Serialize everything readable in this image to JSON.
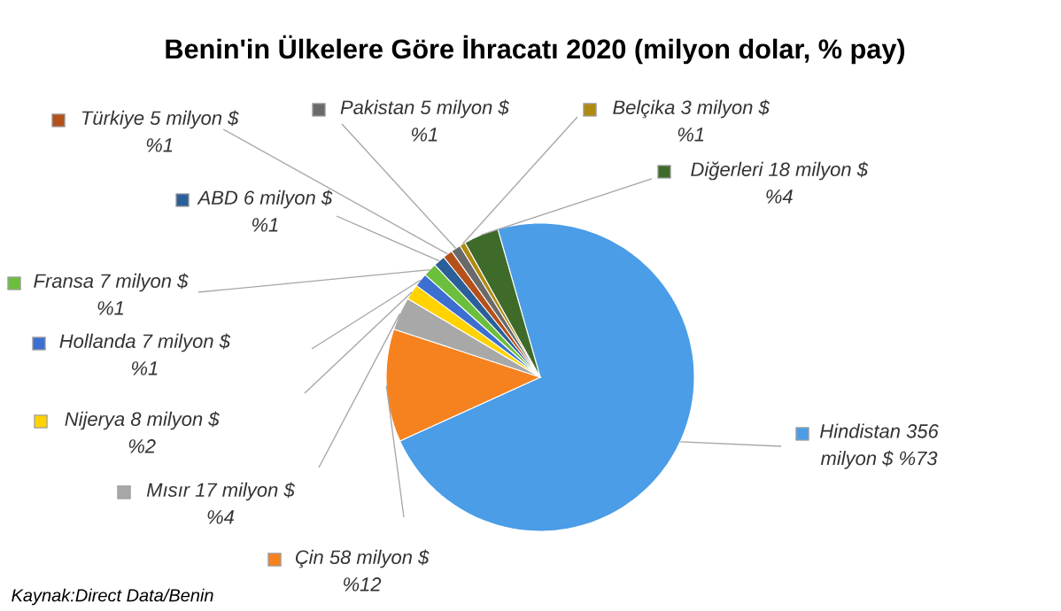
{
  "chart_data": {
    "type": "pie",
    "title": "Benin'in Ülkelere Göre İhracatı 2020 (milyon dolar, % pay)",
    "categories": [
      "Hindistan",
      "Çin",
      "Mısır",
      "Nijerya",
      "Hollanda",
      "Fransa",
      "ABD",
      "Türkiye",
      "Pakistan",
      "Belçika",
      "Diğerleri"
    ],
    "values": [
      356,
      58,
      17,
      8,
      7,
      7,
      6,
      5,
      5,
      3,
      18
    ],
    "value_labels": [
      "356 milyon $ %73",
      "58 milyon $ %12",
      "17 milyon $ %4",
      "8 milyon $ %2",
      "7 milyon $ %1",
      "7 milyon $ %1",
      "6 milyon $ %1",
      "5 milyon $ %1",
      "5 milyon $ %1",
      "3 milyon $ %1",
      "18 milyon $ %4"
    ],
    "colors": [
      "#4a9de6",
      "#f5821f",
      "#a8a8a8",
      "#ffd200",
      "#3d6fd0",
      "#6cbf3c",
      "#2a5f99",
      "#b4501a",
      "#6a6a6a",
      "#b08a10",
      "#3e6b2a"
    ],
    "legend": "top left",
    "annotations": [
      "Kaynak:Direct Data/Benin"
    ]
  }
}
